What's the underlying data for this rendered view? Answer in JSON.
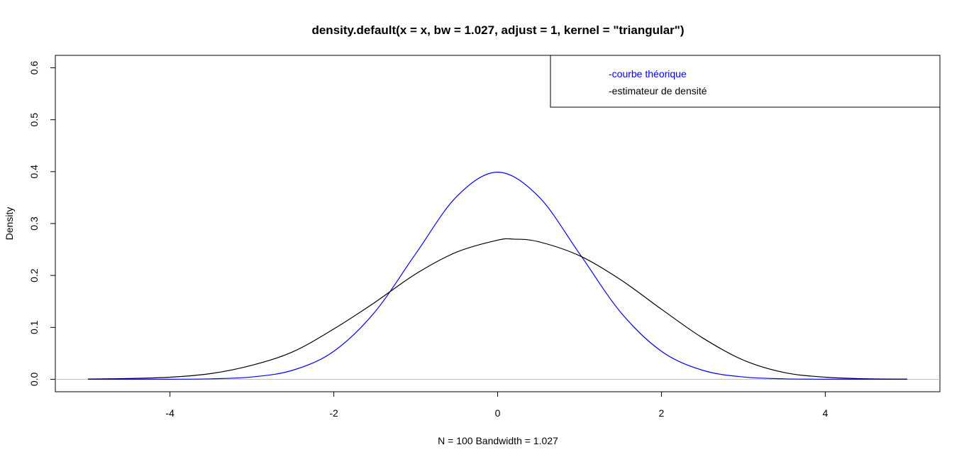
{
  "chart_data": {
    "type": "line",
    "title": "density.default(x = x, bw = 1.027, adjust = 1, kernel = \"triangular\")",
    "xlabel": "N = 100   Bandwidth = 1.027",
    "ylabel": "Density",
    "xlim": [
      -5.4,
      5.4
    ],
    "ylim": [
      -0.024,
      0.624
    ],
    "x_ticks": [
      -4,
      -2,
      0,
      2,
      4
    ],
    "x_tick_labels": [
      "-4",
      "-2",
      "0",
      "2",
      "4"
    ],
    "y_ticks": [
      0.0,
      0.1,
      0.2,
      0.3,
      0.4,
      0.5,
      0.6
    ],
    "y_tick_labels": [
      "0.0",
      "0.1",
      "0.2",
      "0.3",
      "0.4",
      "0.5",
      "0.6"
    ],
    "zero_line": true,
    "grid": false,
    "legend_position": "top-right",
    "legend": [
      {
        "label": "-courbe théorique",
        "color": "#0000ff"
      },
      {
        "label": "-estimateur de densité",
        "color": "#000000"
      }
    ],
    "series": [
      {
        "color": "#0000ff",
        "x": [
          -5.0,
          -4.5,
          -4.0,
          -3.5,
          -3.0,
          -2.5,
          -2.0,
          -1.5,
          -1.0,
          -0.5,
          0.0,
          0.5,
          1.0,
          1.5,
          2.0,
          2.5,
          3.0,
          3.5,
          4.0,
          4.5,
          5.0
        ],
        "y": [
          1e-06,
          1.6e-05,
          0.000134,
          0.000873,
          0.004432,
          0.017528,
          0.053991,
          0.129518,
          0.241971,
          0.352065,
          0.398942,
          0.352065,
          0.241971,
          0.129518,
          0.053991,
          0.017528,
          0.004432,
          0.000873,
          0.000134,
          1.6e-05,
          1e-06
        ]
      },
      {
        "color": "#000000",
        "x": [
          -5.0,
          -4.5,
          -4.0,
          -3.5,
          -3.0,
          -2.5,
          -2.0,
          -1.5,
          -1.0,
          -0.5,
          0.0,
          0.2,
          0.5,
          1.0,
          1.5,
          2.0,
          2.5,
          3.0,
          3.5,
          4.0,
          4.5,
          5.0
        ],
        "y": [
          0.0005,
          0.0015,
          0.004,
          0.011,
          0.027,
          0.053,
          0.097,
          0.148,
          0.203,
          0.245,
          0.268,
          0.27,
          0.265,
          0.238,
          0.192,
          0.135,
          0.08,
          0.037,
          0.013,
          0.004,
          0.001,
          0.0003
        ]
      }
    ]
  }
}
